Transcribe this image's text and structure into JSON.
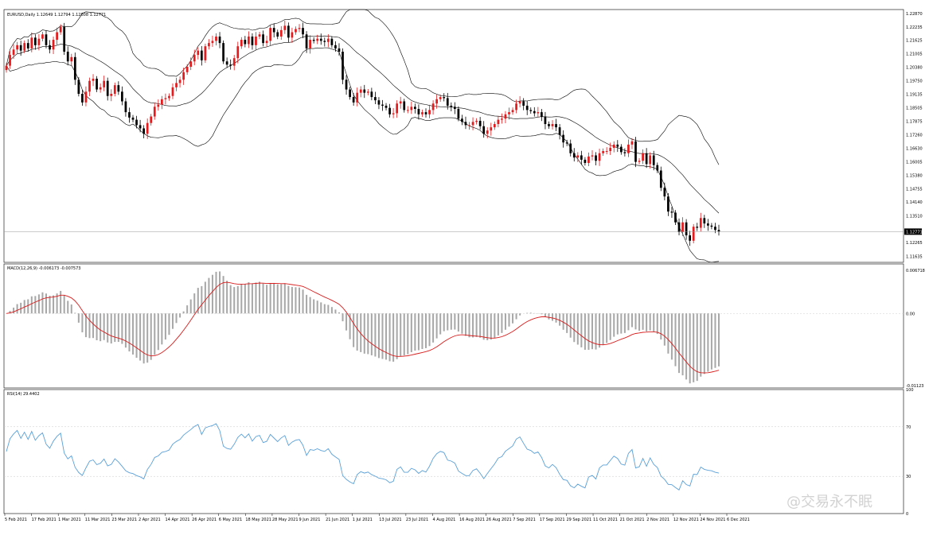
{
  "symbol_header": "EURUSD,Daily  1.12649 1.12794 1.12608 1.12771",
  "macd_header": "MACD(12,26,9) -0.006173 -0.007573",
  "rsi_header": "RSI(14) 29.4402",
  "watermark": "@交易永不眠",
  "price_axis_labels": [
    "1.22870",
    "1.22235",
    "1.21625",
    "1.21005",
    "1.20380",
    "1.19750",
    "1.19135",
    "1.18505",
    "1.17875",
    "1.17260",
    "1.16630",
    "1.16005",
    "1.15380",
    "1.14755",
    "1.14140",
    "1.13510",
    "1.12771",
    "1.12265",
    "1.11635"
  ],
  "macd_axis_labels": [
    "0.006718",
    "0.00",
    "-0.01123"
  ],
  "rsi_axis_labels": [
    "100",
    "70",
    "30",
    "0"
  ],
  "date_labels": [
    "5 Feb 2021",
    "17 Feb 2021",
    "1 Mar 2021",
    "11 Mar 2021",
    "23 Mar 2021",
    "2 Apr 2021",
    "14 Apr 2021",
    "26 Apr 2021",
    "6 May 2021",
    "18 May 2021",
    "28 May 2021",
    "9 Jun 2021",
    "21 Jun 2021",
    "1 Jul 2021",
    "13 Jul 2021",
    "23 Jul 2021",
    "4 Aug 2021",
    "16 Aug 2021",
    "26 Aug 2021",
    "7 Sep 2021",
    "17 Sep 2021",
    "29 Sep 2021",
    "11 Oct 2021",
    "21 Oct 2021",
    "2 Nov 2021",
    "12 Nov 2021",
    "24 Nov 2021",
    "6 Dec 2021"
  ],
  "colors": {
    "bull": "#e41a1c",
    "bear": "#000000",
    "band": "#000000",
    "signal": "#d81b1b",
    "histogram": "#a8a8a8",
    "rsi": "#5aa0d8",
    "current_price_box": "#000000"
  },
  "chart_data": [
    {
      "type": "candlestick",
      "symbol": "EURUSD",
      "timeframe": "Daily",
      "ohlc_last": {
        "open": 1.12649,
        "high": 1.12794,
        "low": 1.12608,
        "close": 1.12771
      },
      "ylim": [
        1.1135,
        1.2305
      ],
      "bollinger_bands": true,
      "close": [
        1.2045,
        1.2095,
        1.212,
        1.214,
        1.2115,
        1.215,
        1.2125,
        1.2175,
        1.214,
        1.217,
        1.219,
        1.214,
        1.212,
        1.2165,
        1.22,
        1.2225,
        1.211,
        1.2065,
        1.2085,
        1.198,
        1.1915,
        1.1875,
        1.1925,
        1.1975,
        1.1985,
        1.1935,
        1.1945,
        1.1975,
        1.1905,
        1.1915,
        1.1955,
        1.1925,
        1.188,
        1.183,
        1.1805,
        1.1795,
        1.177,
        1.1755,
        1.173,
        1.178,
        1.181,
        1.1855,
        1.1865,
        1.189,
        1.1895,
        1.1905,
        1.1945,
        1.1965,
        1.198,
        1.2015,
        1.204,
        1.2065,
        1.2095,
        1.2115,
        1.207,
        1.2135,
        1.215,
        1.216,
        1.218,
        1.215,
        1.2065,
        1.205,
        1.2045,
        1.208,
        1.2135,
        1.2165,
        1.2145,
        1.218,
        1.214,
        1.218,
        1.219,
        1.215,
        1.216,
        1.222,
        1.22,
        1.218,
        1.221,
        1.223,
        1.2175,
        1.22,
        1.2215,
        1.222,
        1.219,
        1.2125,
        1.2165,
        1.216,
        1.217,
        1.216,
        1.2155,
        1.217,
        1.214,
        1.2125,
        1.211,
        1.198,
        1.1935,
        1.19,
        1.1875,
        1.192,
        1.1935,
        1.192,
        1.1925,
        1.19,
        1.1885,
        1.1865,
        1.186,
        1.185,
        1.182,
        1.1825,
        1.187,
        1.188,
        1.184,
        1.184,
        1.1855,
        1.1845,
        1.182,
        1.183,
        1.182,
        1.184,
        1.187,
        1.189,
        1.19,
        1.1895,
        1.186,
        1.1855,
        1.1845,
        1.18,
        1.1785,
        1.177,
        1.177,
        1.1785,
        1.179,
        1.1765,
        1.173,
        1.1745,
        1.176,
        1.1775,
        1.1795,
        1.18,
        1.182,
        1.183,
        1.184,
        1.187,
        1.188,
        1.186,
        1.184,
        1.1835,
        1.1825,
        1.183,
        1.181,
        1.1775,
        1.1765,
        1.1775,
        1.176,
        1.1725,
        1.169,
        1.1685,
        1.164,
        1.162,
        1.163,
        1.161,
        1.1595,
        1.1625,
        1.163,
        1.1605,
        1.164,
        1.165,
        1.165,
        1.1665,
        1.168,
        1.167,
        1.1645,
        1.164,
        1.168,
        1.1695,
        1.16,
        1.1605,
        1.164,
        1.159,
        1.163,
        1.1585,
        1.156,
        1.148,
        1.144,
        1.137,
        1.1365,
        1.132,
        1.1275,
        1.132,
        1.126,
        1.1235,
        1.13,
        1.1295,
        1.134,
        1.1315,
        1.1305,
        1.13,
        1.1285,
        1.12771
      ]
    },
    {
      "type": "histogram+line",
      "name": "MACD(12,26,9)",
      "value": -0.006173,
      "signal_value": -0.007573,
      "ylim": [
        -0.01123,
        0.006718
      ]
    },
    {
      "type": "line",
      "name": "RSI(14)",
      "value": 29.4402,
      "ylim": [
        0,
        100
      ],
      "levels": [
        70,
        30
      ]
    }
  ]
}
